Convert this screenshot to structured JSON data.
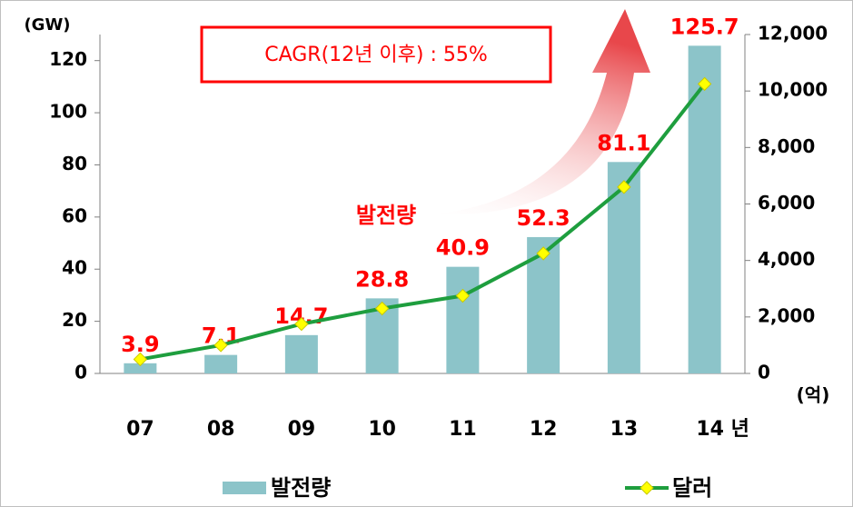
{
  "chart_data": {
    "type": "bar",
    "categories": [
      "07",
      "08",
      "09",
      "10",
      "11",
      "12",
      "13",
      "14 년"
    ],
    "series": [
      {
        "name": "발전량",
        "type": "bar",
        "color": "#8cc4c9",
        "values": [
          3.9,
          7.1,
          14.7,
          28.8,
          40.9,
          52.3,
          81.1,
          125.7
        ],
        "label_color": "#ff0000"
      },
      {
        "name": "달러",
        "type": "line",
        "axis": "y2",
        "color": "#1e9e3e",
        "marker_color": "#ffff00",
        "values": [
          500,
          1000,
          1750,
          2300,
          2750,
          4250,
          6600,
          10250
        ]
      }
    ],
    "ylabel": "(GW)",
    "y2label": "(억)",
    "ylim": [
      0,
      130
    ],
    "yticks": [
      0,
      20,
      40,
      60,
      80,
      100,
      120
    ],
    "y2lim": [
      0,
      12000
    ],
    "y2ticks": [
      0,
      {
        "value": 2000,
        "label": "2,000"
      },
      {
        "value": 4000,
        "label": "4,000"
      },
      {
        "value": 6000,
        "label": "6,000"
      },
      {
        "value": 8000,
        "label": "8,000"
      },
      {
        "value": 10000,
        "label": "10,000"
      },
      {
        "value": 12000,
        "label": "12,000"
      }
    ],
    "annotations": [
      "CAGR(12년 이후) : 55%",
      "발전량"
    ]
  }
}
